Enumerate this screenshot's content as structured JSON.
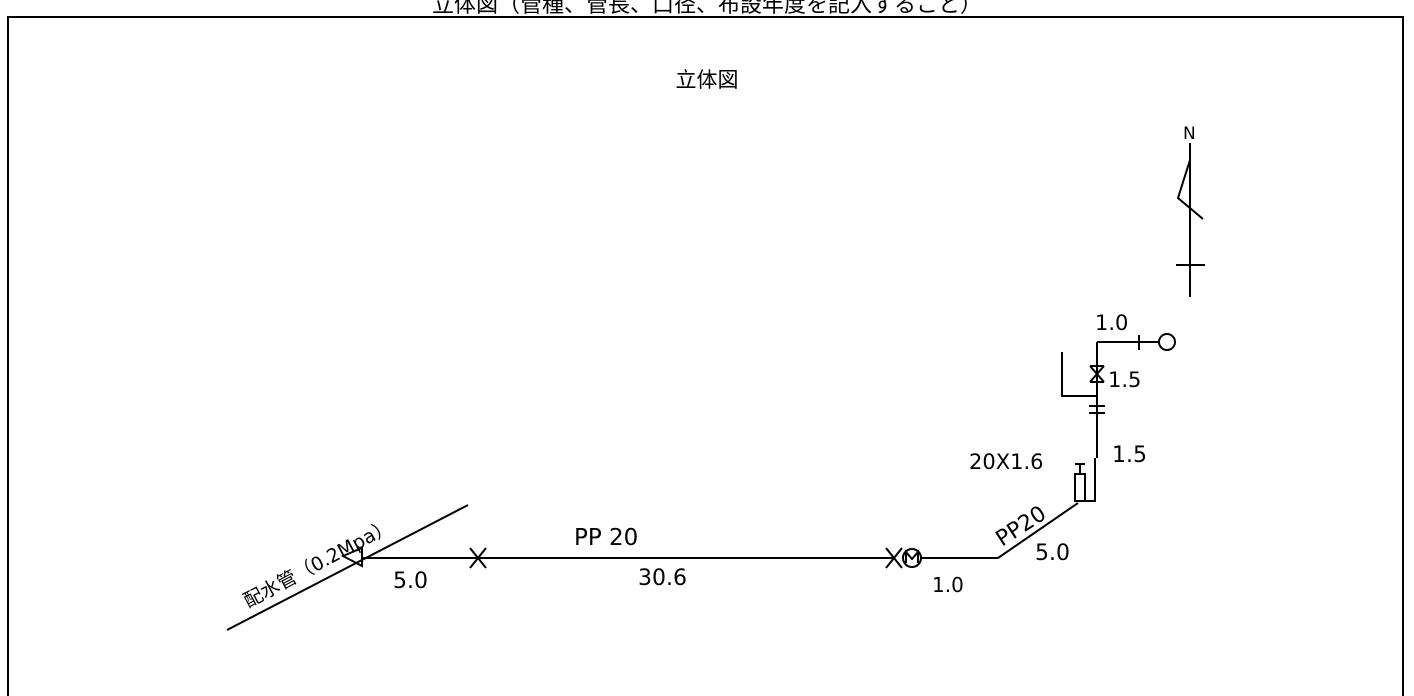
{
  "header": {
    "caption": "立体図（管種、管長、口径、布設年度を記入すること）"
  },
  "diagram": {
    "title": "立体図",
    "north_label": "N",
    "main_pipe_label": "配水管（0.2Mpa）",
    "labels": {
      "run_first_length": "5.0",
      "run_main_spec": "PP 20",
      "run_main_length": "30.6",
      "meter_length": "1.0",
      "diagonal_spec": "PP20",
      "diagonal_length": "5.0",
      "fitting_spec": "20X1.6",
      "riser_lower_length": "1.5",
      "riser_upper_length": "1.5",
      "top_branch_length": "1.0"
    }
  }
}
